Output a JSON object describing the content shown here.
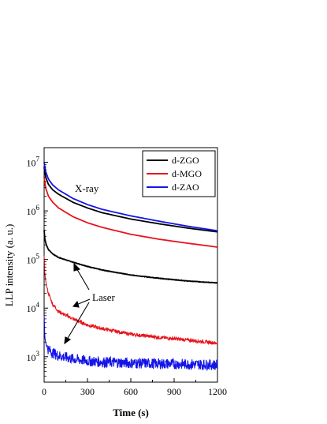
{
  "chart_data": {
    "type": "line",
    "xlabel": "Time (s)",
    "ylabel": "LLP intensity (a. u.)",
    "xlim": [
      0,
      1200
    ],
    "ylim": [
      300,
      20000000
    ],
    "y_scale": "log",
    "x_ticks": [
      0,
      300,
      600,
      900,
      1200
    ],
    "y_ticks": [
      {
        "value": 1000,
        "base": "10",
        "exp": "3"
      },
      {
        "value": 10000,
        "base": "10",
        "exp": "4"
      },
      {
        "value": 100000,
        "base": "10",
        "exp": "5"
      },
      {
        "value": 1000000,
        "base": "10",
        "exp": "6"
      },
      {
        "value": 10000000,
        "base": "10",
        "exp": "7"
      }
    ],
    "grid": false,
    "legend": {
      "position": "top-right"
    },
    "annotations": {
      "xray": "X-ray",
      "laser": "Laser"
    },
    "series": [
      {
        "name": "d-ZGO",
        "color": "#000000",
        "group": "X-ray",
        "x": [
          0,
          10,
          30,
          60,
          100,
          200,
          300,
          400,
          600,
          800,
          1000,
          1200
        ],
        "y": [
          8000000,
          5000000,
          3500000,
          2700000,
          2200000,
          1500000,
          1150000,
          920000,
          680000,
          540000,
          440000,
          370000
        ]
      },
      {
        "name": "d-MGO",
        "color": "#e8141c",
        "group": "X-ray",
        "x": [
          0,
          10,
          30,
          60,
          100,
          200,
          300,
          400,
          600,
          800,
          1000,
          1200
        ],
        "y": [
          5000000,
          3000000,
          2000000,
          1500000,
          1150000,
          760000,
          570000,
          460000,
          330000,
          260000,
          215000,
          180000
        ]
      },
      {
        "name": "d-ZAO",
        "color": "#1414e8",
        "group": "X-ray",
        "x": [
          0,
          10,
          30,
          60,
          100,
          200,
          300,
          400,
          600,
          800,
          1000,
          1200
        ],
        "y": [
          10000000,
          6500000,
          4500000,
          3400000,
          2700000,
          1800000,
          1350000,
          1080000,
          790000,
          610000,
          480000,
          390000
        ]
      },
      {
        "name": "d-ZGO",
        "color": "#000000",
        "group": "Laser",
        "x": [
          0,
          5,
          15,
          30,
          60,
          100,
          200,
          300,
          400,
          600,
          800,
          1000,
          1200
        ],
        "y": [
          400000,
          260000,
          200000,
          160000,
          130000,
          110000,
          88000,
          72000,
          61000,
          48000,
          41000,
          36000,
          33000
        ]
      },
      {
        "name": "d-MGO",
        "color": "#e8141c",
        "group": "Laser",
        "x": [
          0,
          5,
          15,
          30,
          60,
          100,
          200,
          300,
          400,
          600,
          800,
          1000,
          1200
        ],
        "y": [
          120000,
          50000,
          30000,
          20000,
          12000,
          8500,
          6000,
          4500,
          3800,
          2900,
          2500,
          2200,
          1900
        ]
      },
      {
        "name": "d-ZAO",
        "color": "#1414e8",
        "group": "Laser",
        "x": [
          0,
          5,
          15,
          30,
          60,
          100,
          200,
          300,
          400,
          600,
          800,
          1000,
          1200
        ],
        "y": [
          7000,
          2500,
          1700,
          1400,
          1200,
          1050,
          900,
          820,
          780,
          740,
          720,
          700,
          680
        ]
      }
    ]
  }
}
